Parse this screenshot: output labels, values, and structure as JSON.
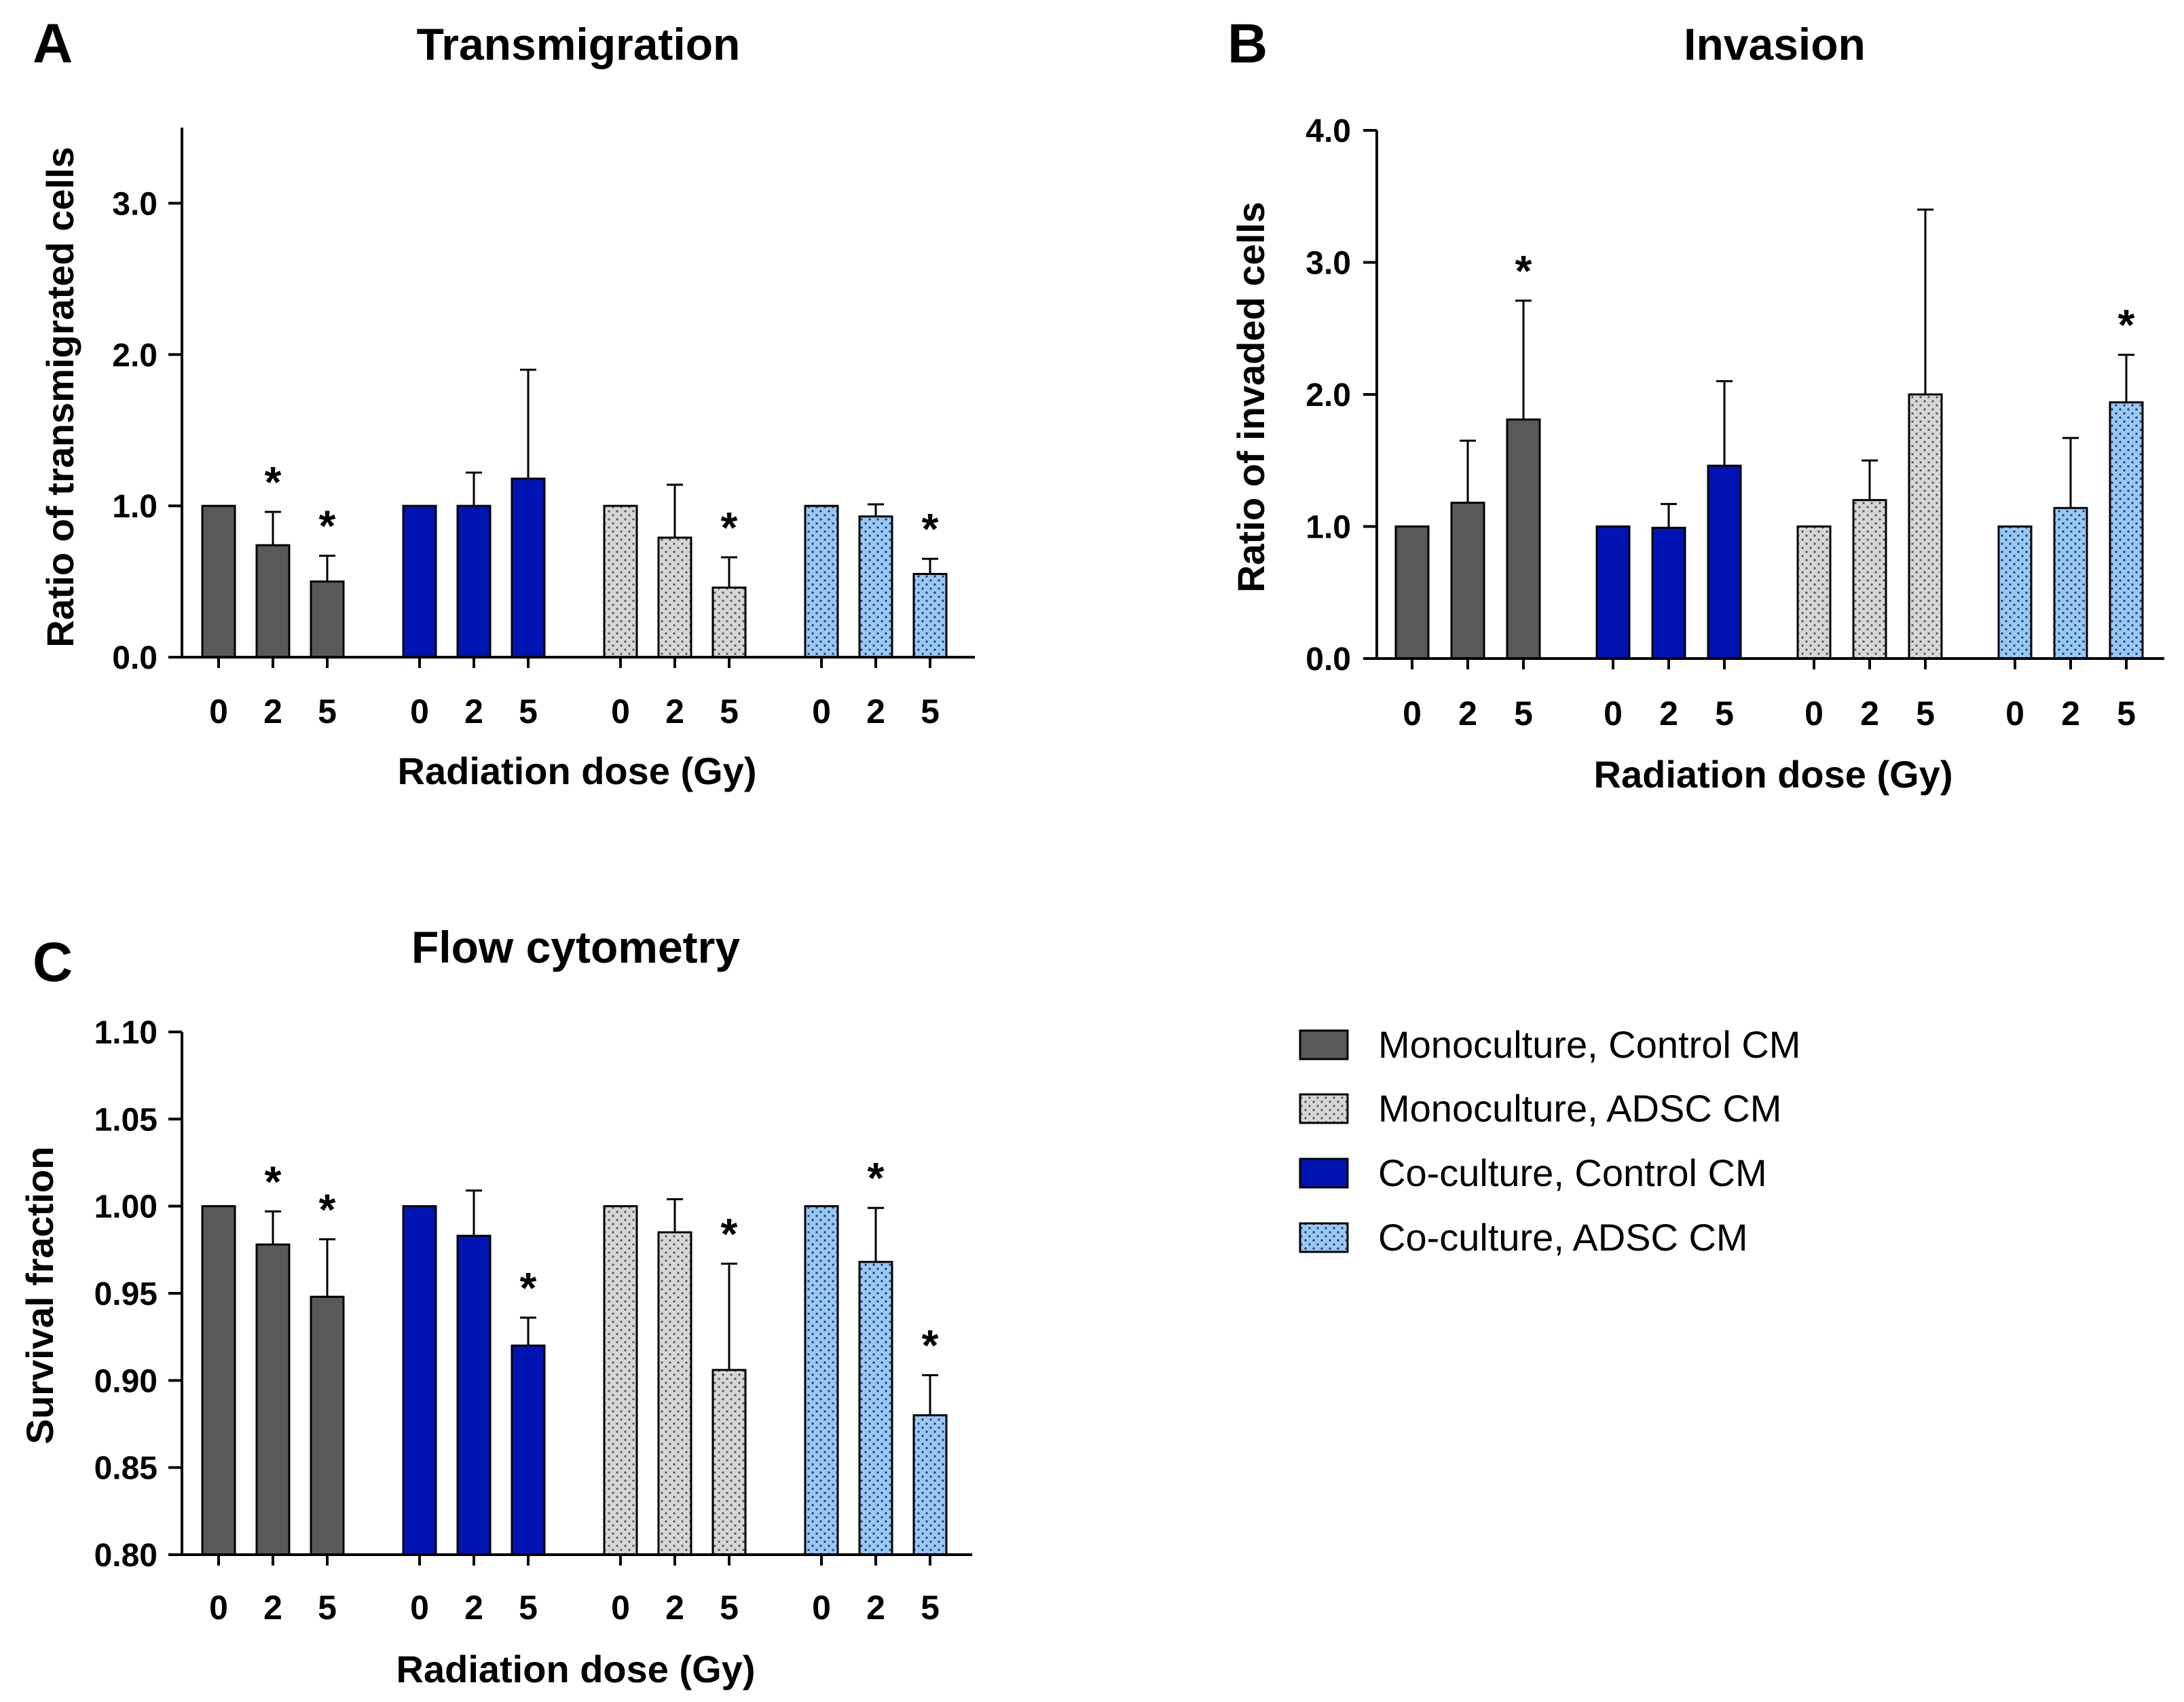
{
  "colors": {
    "mono_control": "#595959",
    "co_control": "#0014b4",
    "mono_adsc": "#d6d6d6",
    "co_adsc": "#99c7f6"
  },
  "legend": [
    {
      "label": "Monoculture, Control CM",
      "color": "#595959",
      "pattern": "none"
    },
    {
      "label": "Monoculture, ADSC CM",
      "color": "#d6d6d6",
      "pattern": "dots"
    },
    {
      "label": "Co-culture, Control CM",
      "color": "#0014b4",
      "pattern": "none"
    },
    {
      "label": "Co-culture, ADSC CM",
      "color": "#99c7f6",
      "pattern": "dots"
    }
  ],
  "chart_data": [
    {
      "panel": "A",
      "type": "bar",
      "title": "Transmigration",
      "xlabel": "Radiation dose (Gy)",
      "ylabel": "Ratio of transmigrated cells",
      "ylim": [
        0,
        3.5
      ],
      "yticks": [
        "0.0",
        "1.0",
        "2.0",
        "3.0"
      ],
      "categories": [
        "0",
        "2",
        "5"
      ],
      "series": [
        {
          "name": "Monoculture, Control CM",
          "values": [
            1.0,
            0.74,
            0.5
          ],
          "errors": [
            0,
            0.22,
            0.17
          ],
          "significant": [
            false,
            true,
            true
          ]
        },
        {
          "name": "Co-culture, Control CM",
          "values": [
            1.0,
            1.0,
            1.18
          ],
          "errors": [
            0,
            0.22,
            0.72
          ],
          "significant": [
            false,
            false,
            false
          ]
        },
        {
          "name": "Monoculture, ADSC CM",
          "values": [
            1.0,
            0.79,
            0.46
          ],
          "errors": [
            0,
            0.35,
            0.2
          ],
          "significant": [
            false,
            false,
            true
          ]
        },
        {
          "name": "Co-culture, ADSC CM",
          "values": [
            1.0,
            0.93,
            0.55
          ],
          "errors": [
            0,
            0.08,
            0.1
          ],
          "significant": [
            false,
            false,
            true
          ]
        }
      ]
    },
    {
      "panel": "B",
      "type": "bar",
      "title": "Invasion",
      "xlabel": "Radiation dose (Gy)",
      "ylabel": "Ratio of invaded cells",
      "ylim": [
        0,
        4.0
      ],
      "yticks": [
        "0.0",
        "1.0",
        "2.0",
        "3.0",
        "4.0"
      ],
      "categories": [
        "0",
        "2",
        "5"
      ],
      "series": [
        {
          "name": "Monoculture, Control CM",
          "values": [
            1.0,
            1.18,
            1.81
          ],
          "errors": [
            0,
            0.47,
            0.9
          ],
          "significant": [
            false,
            false,
            true
          ]
        },
        {
          "name": "Co-culture, Control CM",
          "values": [
            1.0,
            0.99,
            1.46
          ],
          "errors": [
            0,
            0.18,
            0.64
          ],
          "significant": [
            false,
            false,
            false
          ]
        },
        {
          "name": "Monoculture, ADSC CM",
          "values": [
            1.0,
            1.2,
            2.0
          ],
          "errors": [
            0,
            0.3,
            1.4
          ],
          "significant": [
            false,
            false,
            false
          ]
        },
        {
          "name": "Co-culture, ADSC CM",
          "values": [
            1.0,
            1.14,
            1.94
          ],
          "errors": [
            0,
            0.53,
            0.36
          ],
          "significant": [
            false,
            false,
            true
          ]
        }
      ]
    },
    {
      "panel": "C",
      "type": "bar",
      "title": "Flow cytometry",
      "xlabel": "Radiation dose (Gy)",
      "ylabel": "Survival fraction",
      "ylim": [
        0.8,
        1.1
      ],
      "yticks": [
        "0.80",
        "0.85",
        "0.90",
        "0.95",
        "1.00",
        "1.05",
        "1.10"
      ],
      "categories": [
        "0",
        "2",
        "5"
      ],
      "series": [
        {
          "name": "Monoculture, Control CM",
          "values": [
            1.0,
            0.978,
            0.948
          ],
          "errors": [
            0,
            0.019,
            0.033
          ],
          "significant": [
            false,
            true,
            true
          ]
        },
        {
          "name": "Co-culture, Control CM",
          "values": [
            1.0,
            0.983,
            0.92
          ],
          "errors": [
            0,
            0.026,
            0.016
          ],
          "significant": [
            false,
            false,
            true
          ]
        },
        {
          "name": "Monoculture, ADSC CM",
          "values": [
            1.0,
            0.985,
            0.906
          ],
          "errors": [
            0,
            0.019,
            0.061
          ],
          "significant": [
            false,
            false,
            true
          ]
        },
        {
          "name": "Co-culture, ADSC CM",
          "values": [
            1.0,
            0.968,
            0.88
          ],
          "errors": [
            0,
            0.031,
            0.023
          ],
          "significant": [
            false,
            true,
            true
          ]
        }
      ]
    }
  ]
}
